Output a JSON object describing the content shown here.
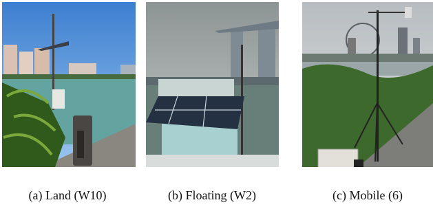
{
  "figure": {
    "panels": [
      {
        "caption": "(a) Land (W10)"
      },
      {
        "caption": "(b) Floating (W2)"
      },
      {
        "caption": "(c) Mobile (6)"
      }
    ]
  }
}
